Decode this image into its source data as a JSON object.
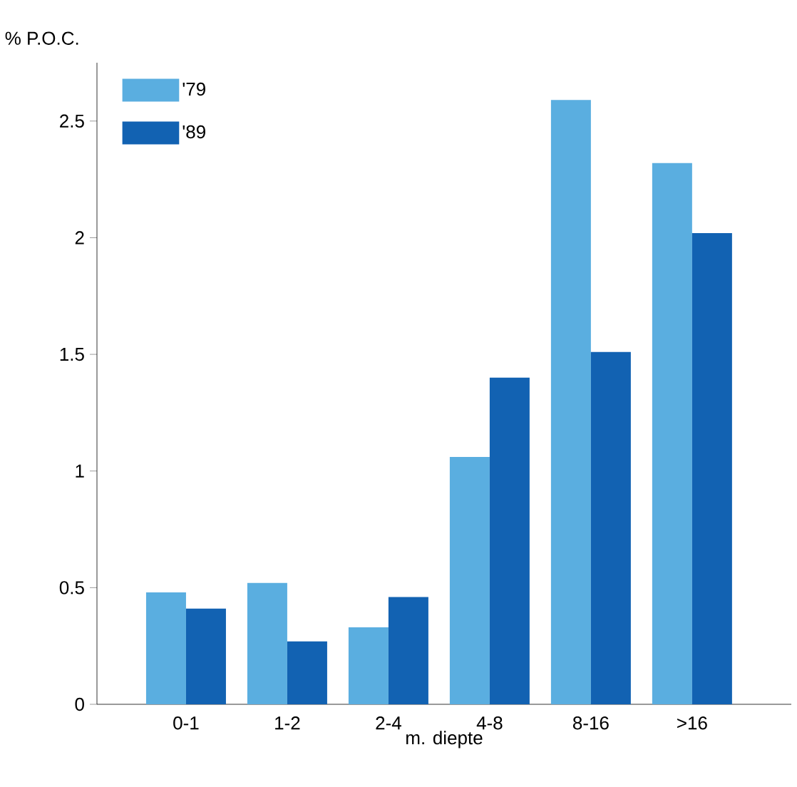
{
  "chart_data": {
    "type": "bar",
    "ylabel": "% P.O.C.",
    "xlabel": "m. diepte",
    "categories": [
      "0-1",
      "1-2",
      "2-4",
      "4-8",
      "8-16",
      ">16"
    ],
    "series": [
      {
        "name": "'79",
        "color": "#5aaee0",
        "values": [
          0.48,
          0.52,
          0.33,
          1.06,
          2.59,
          2.32
        ]
      },
      {
        "name": "'89",
        "color": "#1262b2",
        "values": [
          0.41,
          0.27,
          0.46,
          1.4,
          1.51,
          2.02
        ]
      }
    ],
    "ylim": [
      0,
      2.75
    ],
    "yticks": [
      0,
      0.5,
      1,
      1.5,
      2,
      2.5
    ],
    "legend": "top left",
    "grid": false
  }
}
